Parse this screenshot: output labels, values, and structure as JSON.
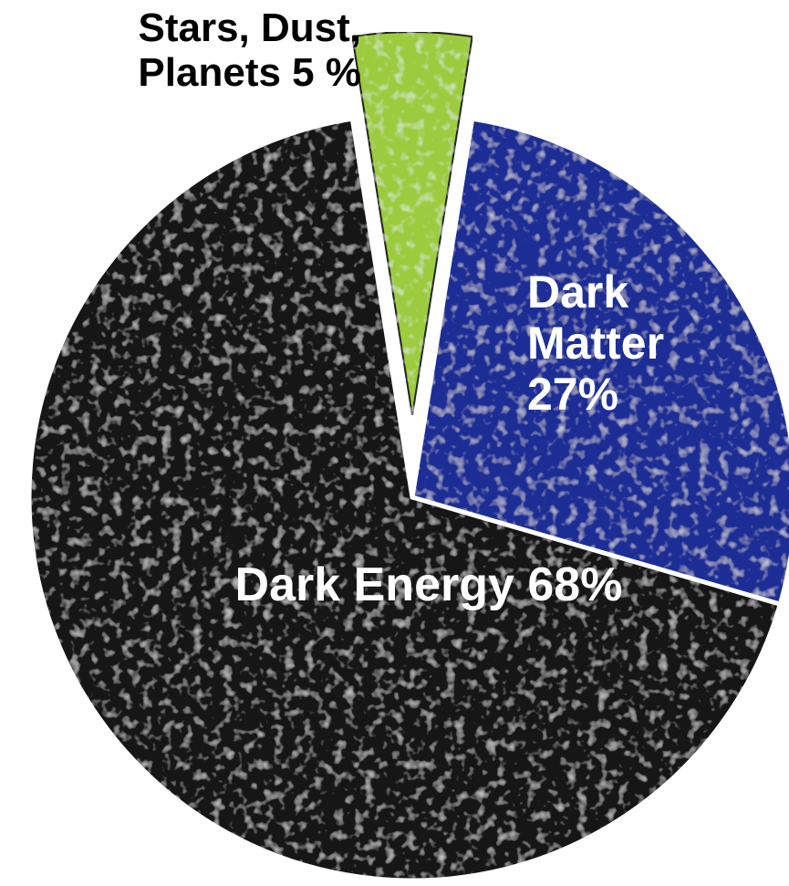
{
  "chart_data": {
    "type": "pie",
    "categories": [
      "Stars, Dust, Planets",
      "Dark Matter",
      "Dark Energy"
    ],
    "values": [
      5,
      27,
      68
    ],
    "value_labels": [
      "5 %",
      "27%",
      "68%"
    ],
    "colors": [
      "#9ccc3c",
      "#1b2f96",
      "#141414"
    ]
  }
}
